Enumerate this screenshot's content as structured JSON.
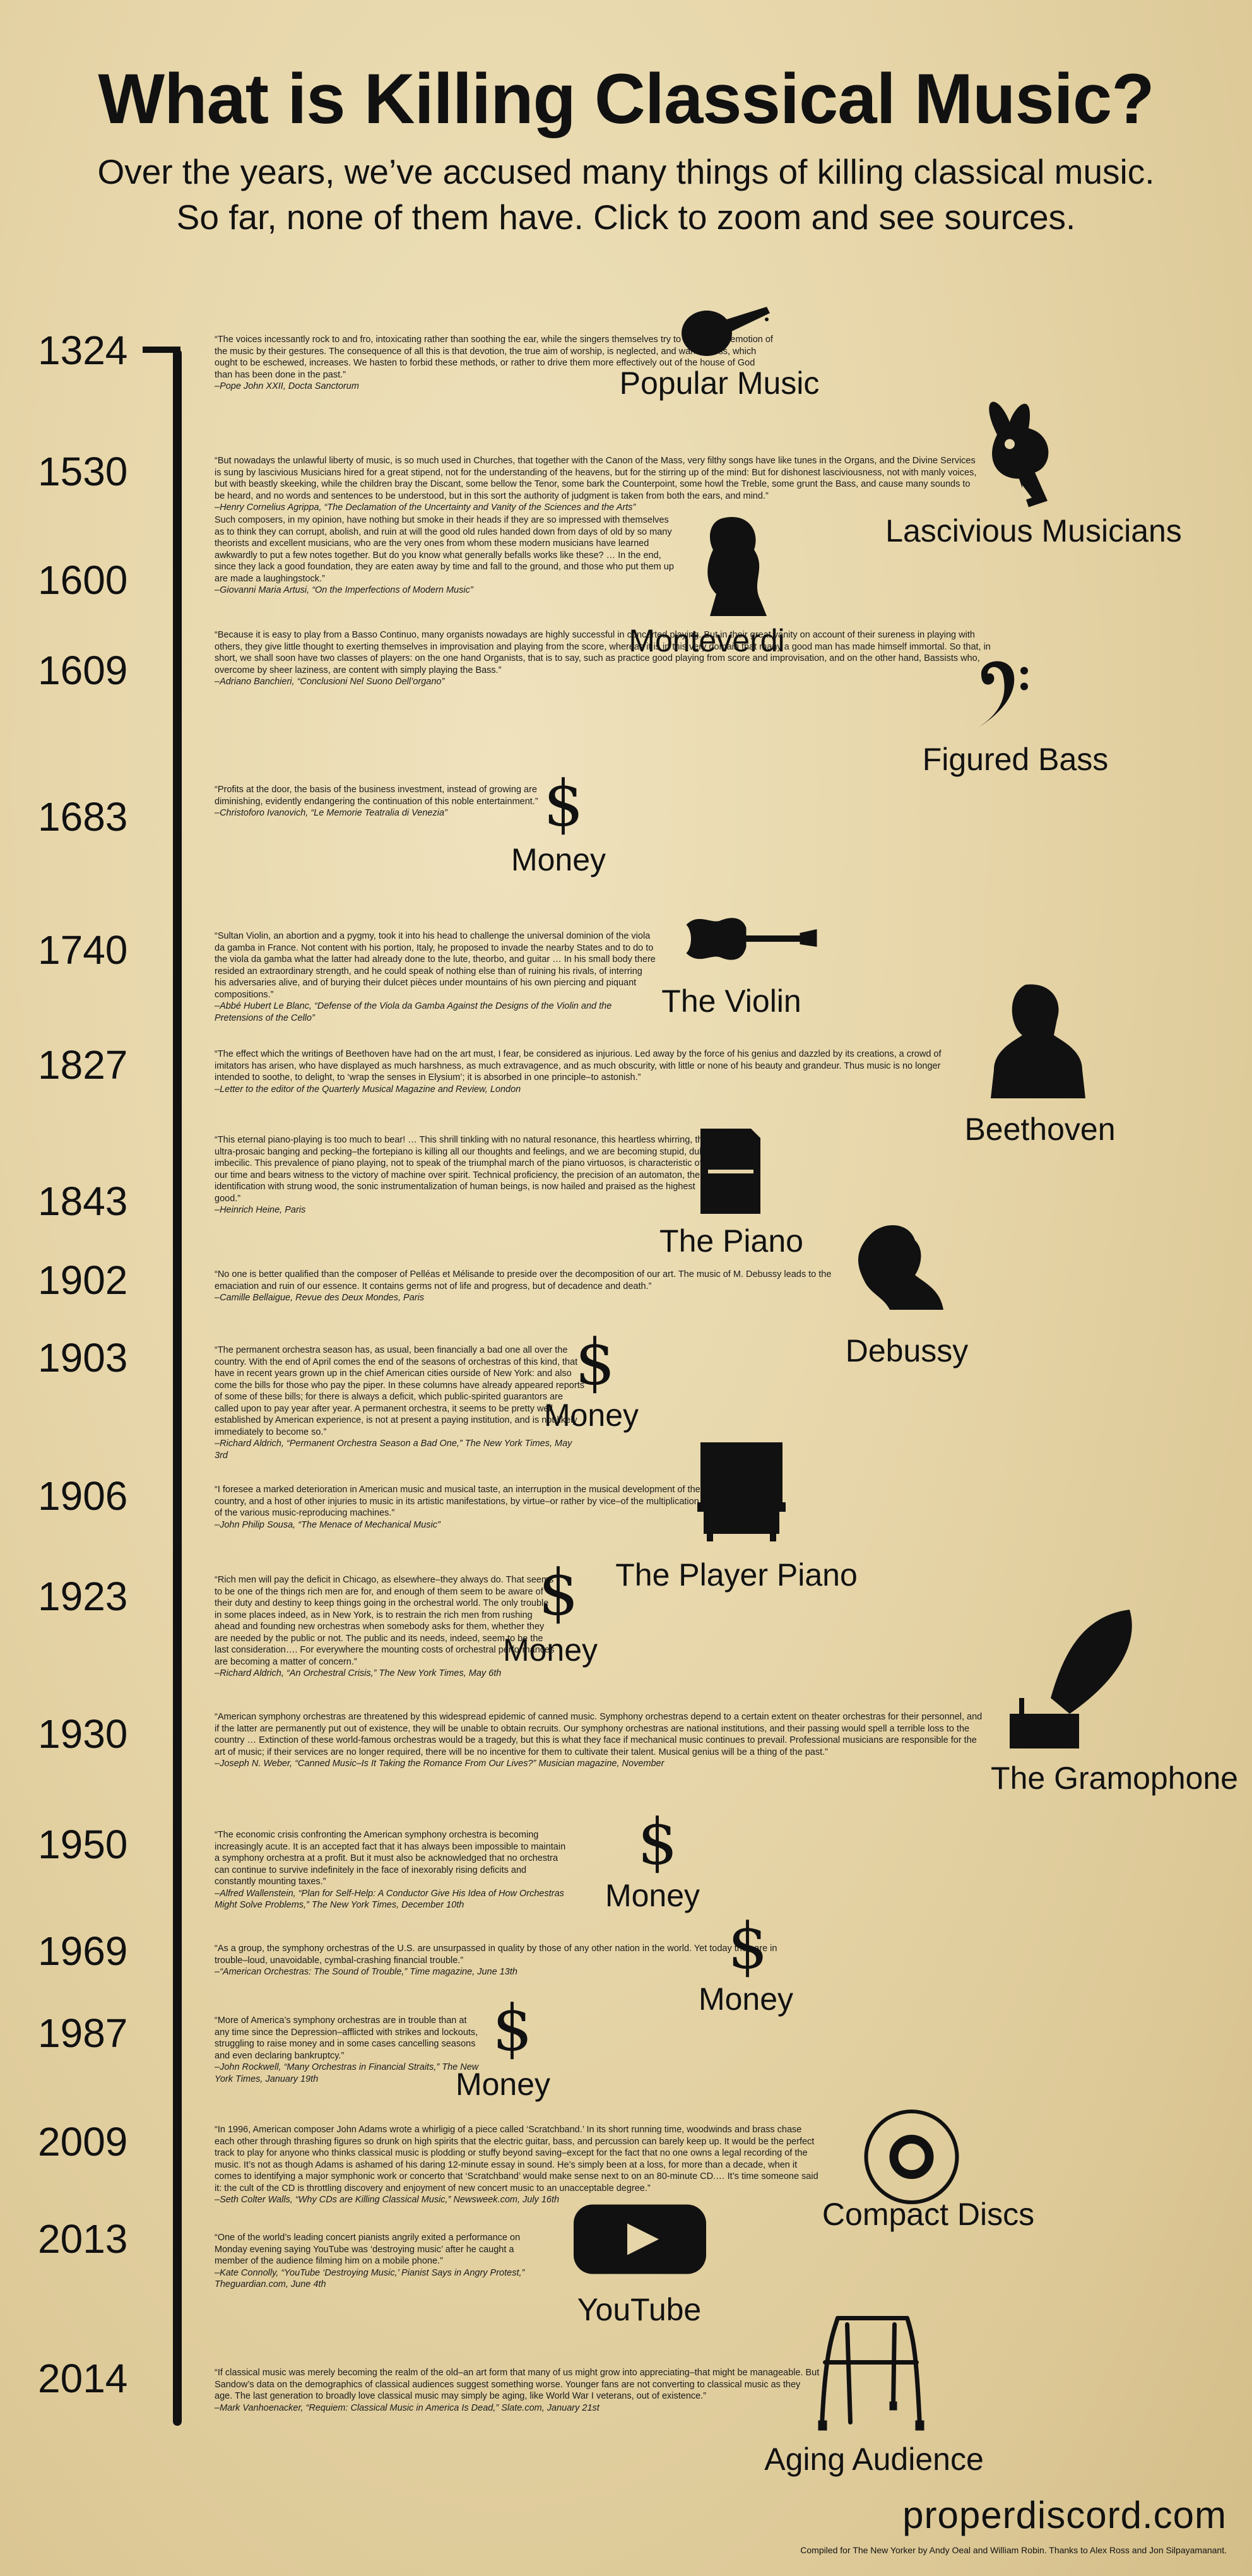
{
  "header": {
    "title": "What is Killing Classical Music?",
    "subtitle_line1": "Over the years, we’ve accused many things of killing classical music.",
    "subtitle_line2": "So far, none of them have. Click to zoom and see sources."
  },
  "colors": {
    "background": "#e6d5a8",
    "ink": "#111111"
  },
  "entries": [
    {
      "year": "1324",
      "label": "Popular Music",
      "icon": "lute-icon",
      "quote": "“The voices incessantly rock to and fro, intoxicating rather than soothing the ear, while the singers themselves try to convey the emotion of the music by their gestures. The consequence of all this is that devotion, the true aim of worship, is neglected, and wantonness, which ought to be eschewed, increases. We hasten to forbid these methods, or rather to drive them more effectively out of the house of God than has been done in the past.”",
      "attribution": "–Pope John XXII, Docta Sanctorum"
    },
    {
      "year": "1530",
      "label": "Lascivious Musicians",
      "icon": "bunny-icon",
      "quote": "“But nowadays the unlawful liberty of music, is so much used in Churches, that together with the Canon of the Mass, very filthy songs have like tunes in the Organs, and the Divine Services is sung by lascivious Musicians hired for a great stipend, not for the understanding of the heavens, but for the stirring up of the mind: But for dishonest lasciviousness, not with manly voices, but with beastly skeeking, while the children bray the Discant, some bellow the Tenor, some bark the Counterpoint, some howl the Treble, some grunt the Bass, and cause many sounds to be heard, and no words and sentences to be understood, but in this sort the authority of judgment is taken from both the ears, and mind.”",
      "attribution": "–Henry Cornelius Agrippa, “The Declamation of the Uncertainty and Vanity of the Sciences and the Arts”"
    },
    {
      "year": "1600",
      "label": "Monteverdi",
      "icon": "monteverdi-portrait-icon",
      "quote": "Such composers, in my opinion, have nothing but smoke in their heads if they are so impressed with themselves as to think they can corrupt, abolish, and ruin at will the good old rules handed down from days of old by so many theorists and excellent musicians, who are the very ones from whom these modern musicians have learned awkwardly to put a few notes together. But do you know what generally befalls works like these? … In the end, since they lack a good foundation, they are eaten away by time and fall to the ground, and those who put them up are made a laughingstock.”",
      "attribution": "–Giovanni Maria Artusi, “On the Imperfections of Modern Music”"
    },
    {
      "year": "1609",
      "label": "Figured Bass",
      "icon": "bass-clef-icon",
      "quote": "“Because it is easy to play from a Basso Continuo, many organists nowadays are highly successful in concerted playing. But in their great vanity on account of their sureness in playing with others, they give little thought to exerting themselves in improvisation and playing from the score, whereas it is in this very domain that many a good man has made himself immortal. So that, in short, we shall soon have two classes of players: on the one hand Organists, that is to say, such as practice good playing from score and improvisation, and on the other hand, Bassists who, overcome by sheer laziness, are content with simply playing the Bass.”",
      "attribution": "–Adriano Banchieri, “Conclusioni Nel Suono Dell’organo”"
    },
    {
      "year": "1683",
      "label": "Money",
      "icon": "dollar-icon",
      "quote": "“Profits at the door, the basis of the business investment, instead of growing are diminishing, evidently endangering the continuation of this noble entertainment.”",
      "attribution": "–Christoforo Ivanovich, “Le Memorie Teatralia di Venezia”"
    },
    {
      "year": "1740",
      "label": "The Violin",
      "icon": "violin-icon",
      "quote": "“Sultan Violin, an abortion and a pygmy, took it into his head to challenge the universal dominion of the viola da gamba in France. Not content with his portion, Italy, he proposed to invade the nearby States and to do to the viola da gamba what the latter had already done to the lute, theorbo, and guitar … In his small body there resided an extraordinary strength, and he could speak of nothing else than of ruining his rivals, of interring his adversaries alive, and of burying their dulcet pièces under mountains of his own piercing and piquant compositions.”",
      "attribution": "–Abbé Hubert Le Blanc, “Defense of the Viola da Gamba Against the Designs of the Violin and the Pretensions of the Cello”"
    },
    {
      "year": "1827",
      "label": "Beethoven",
      "icon": "beethoven-bust-icon",
      "quote": "“The effect which the writings of Beethoven have had on the art must, I fear, be considered as injurious. Led away by the force of his genius and dazzled by its creations, a crowd of imitators has arisen, who have displayed as much harshness, as much extravagence, and as much obscurity, with little or none of his beauty and grandeur. Thus music is no longer intended to soothe, to delight, to ‘wrap the senses in Elysium’; it is absorbed in one principle–to astonish.”",
      "attribution": "–Letter to the editor of the Quarterly Musical Magazine and Review, London"
    },
    {
      "year": "1843",
      "label": "The Piano",
      "icon": "piano-icon",
      "quote": "“This eternal piano-playing is too much to bear! … This shrill tinkling with no natural resonance, this heartless whirring, this ultra-prosaic banging and pecking–the fortepiano is killing all our thoughts and feelings, and we are becoming stupid, dull, imbecilic. This prevalence of piano playing, not to speak of the triumphal march of the piano virtuosos, is characteristic of our time and bears witness to the victory of machine over spirit. Technical proficiency, the precision of an automaton, the identification with strung wood, the sonic instrumentalization of human beings, is now hailed and praised as the highest good.”",
      "attribution": "–Heinrich Heine, Paris"
    },
    {
      "year": "1902",
      "label": "Debussy",
      "icon": "debussy-portrait-icon",
      "quote": "“No one is better qualified than the composer of Pelléas et Mélisande to preside over the decomposition of our art. The music of M. Debussy leads to the emaciation and ruin of our essence. It contains germs not of life and progress, but of decadence and death.”",
      "attribution": "–Camille Bellaigue, Revue des Deux Mondes, Paris"
    },
    {
      "year": "1903",
      "label": "Money",
      "icon": "dollar-icon",
      "quote": "“The permanent orchestra season has, as usual, been financially a bad one all over the country. With the end of April comes the end of the seasons of orchestras of this kind, that have in recent years grown up in the chief American cities ourside of New York: and also come the bills for those who pay the piper. In these columns have already appeared reports of some of these bills; for there is always a deficit, which public-spirited guarantors are called upon to pay year after year. A permanent orchestra, it seems to be pretty well established by American experience, is not at present a paying institution, and is not likely immediately to become so.”",
      "attribution": "–Richard Aldrich, “Permanent Orchestra Season a Bad One,” The New York Times, May 3rd"
    },
    {
      "year": "1906",
      "label": "The Player Piano",
      "icon": "player-piano-icon",
      "quote": "“I foresee a marked deterioration in American music and musical taste, an interruption in the musical development of the country, and a host of other injuries to music in its artistic manifestations, by virtue–or rather by vice–of the multiplication of the various music-reproducing machines.”",
      "attribution": "–John Philip Sousa, “The Menace of Mechanical Music”"
    },
    {
      "year": "1923",
      "label": "Money",
      "icon": "dollar-icon",
      "quote": "“Rich men will pay the deficit in Chicago, as elsewhere–they always do. That seems to be one of the things rich men are for, and enough of them seem to be aware of their duty and destiny to keep things going in the orchestral world. The only trouble in some places indeed, as in New York, is to restrain the rich men from rushing ahead and founding new orchestras when somebody asks for them, whether they are needed by the public or not. The public and its needs, indeed, seem to be the last consideration…. For everywhere the mounting costs of orchestral performances are becoming a matter of concern.”",
      "attribution": "–Richard Aldrich, “An Orchestral Crisis,” The New York Times, May 6th"
    },
    {
      "year": "1930",
      "label": "The Gramophone",
      "icon": "gramophone-icon",
      "quote": "“American symphony orchestras are threatened by this widespread epidemic of canned music. Symphony orchestras depend to a certain extent on theater orchestras for their personnel, and if the latter are permanently put out of existence, they will be unable to obtain recruits. Our symphony orchestras are national institutions, and their passing would spell a terrible loss to the country … Extinction of these world-famous orchestras would be a tragedy, but this is what they face if mechanical music continues to prevail. Professional musicians are responsible for the art of music; if their services are no longer required, there will be no incentive for them to cultivate their talent. Musical genius will be a thing of the past.”",
      "attribution": "–Joseph N. Weber, “Canned Music–Is It Taking the Romance From Our Lives?” Musician magazine, November"
    },
    {
      "year": "1950",
      "label": "Money",
      "icon": "dollar-icon",
      "quote": "“The economic crisis confronting the American symphony orchestra is becoming increasingly acute. It is an accepted fact that it has always been impossible to maintain a symphony orchestra at a profit. But it must also be acknowledged that no orchestra can continue to survive indefinitely in the face of inexorably rising deficits and constantly mounting taxes.”",
      "attribution": "–Alfred Wallenstein, “Plan for Self-Help: A Conductor Give His Idea of How Orchestras Might Solve Problems,” The New York Times, December 10th"
    },
    {
      "year": "1969",
      "label": "Money",
      "icon": "dollar-icon",
      "quote": "“As a group, the symphony orchestras of the U.S. are unsurpassed in quality by those of any other nation in the world. Yet today they are in trouble–loud, unavoidable, cymbal-crashing financial trouble.”",
      "attribution": "–“American Orchestras: The Sound of Trouble,” Time magazine, June 13th"
    },
    {
      "year": "1987",
      "label": "Money",
      "icon": "dollar-icon",
      "quote": "“More of America’s symphony orchestras are in trouble than at any time since the Depression–afflicted with strikes and lockouts, struggling to raise money and in some cases cancelling seasons and even declaring bankruptcy.”",
      "attribution": "–John Rockwell, “Many Orchestras in Financial Straits,” The New York Times, January 19th"
    },
    {
      "year": "2009",
      "label": "Compact Discs",
      "icon": "compact-disc-icon",
      "quote": "“In 1996, American composer John Adams wrote a whirligig of a piece called ‘Scratchband.’ In its short running time, woodwinds and brass chase each other through thrashing figures so drunk on high spirits that the electric guitar, bass, and percussion can barely keep up. It would be the perfect track to play for anyone who thinks classical music is plodding or stuffy beyond saving–except for the fact that no one owns a legal recording of the music. It’s not as though Adams is ashamed of his daring 12-minute essay in sound. He’s simply been at a loss, for more than a decade, when it comes to identifying a major symphonic work or concerto that ‘Scratchband’ would make sense next to on an 80-minute CD.… It’s time someone said it: the cult of the CD is throttling discovery and enjoyment of new concert music to an unacceptable degree.”",
      "attribution": "–Seth Colter Walls, “Why CDs are Killing Classical Music,” Newsweek.com, July 16th"
    },
    {
      "year": "2013",
      "label": "YouTube",
      "icon": "youtube-icon",
      "quote": "“One of the world’s leading concert pianists angrily exited a performance on Monday evening saying YouTube was ‘destroying music’ after he caught a member of the audience filming him on a mobile phone.”",
      "attribution": "–Kate Connolly, “YouTube ‘Destroying Music,’ Pianist Says in Angry Protest,” Theguardian.com, June 4th"
    },
    {
      "year": "2014",
      "label": "Aging Audience",
      "icon": "walker-icon",
      "quote": "“If classical music was merely becoming the realm of the old–an art form that many of us might grow into appreciating–that might be manageable. But Sandow’s data on the demographics of classical audiences suggest something worse. Younger fans are not converting to classical music as they age. The last generation to broadly love classical music may simply be aging, like World War I veterans, out of existence.”",
      "attribution": "–Mark Vanhoenacker, “Requiem: Classical Music in America Is Dead,” Slate.com, January 21st"
    }
  ],
  "footer": {
    "site": "properdiscord.com",
    "credit": "Compiled for The New Yorker by Andy Oeal and William Robin. Thanks to Alex Ross and Jon Silpayamanant."
  }
}
